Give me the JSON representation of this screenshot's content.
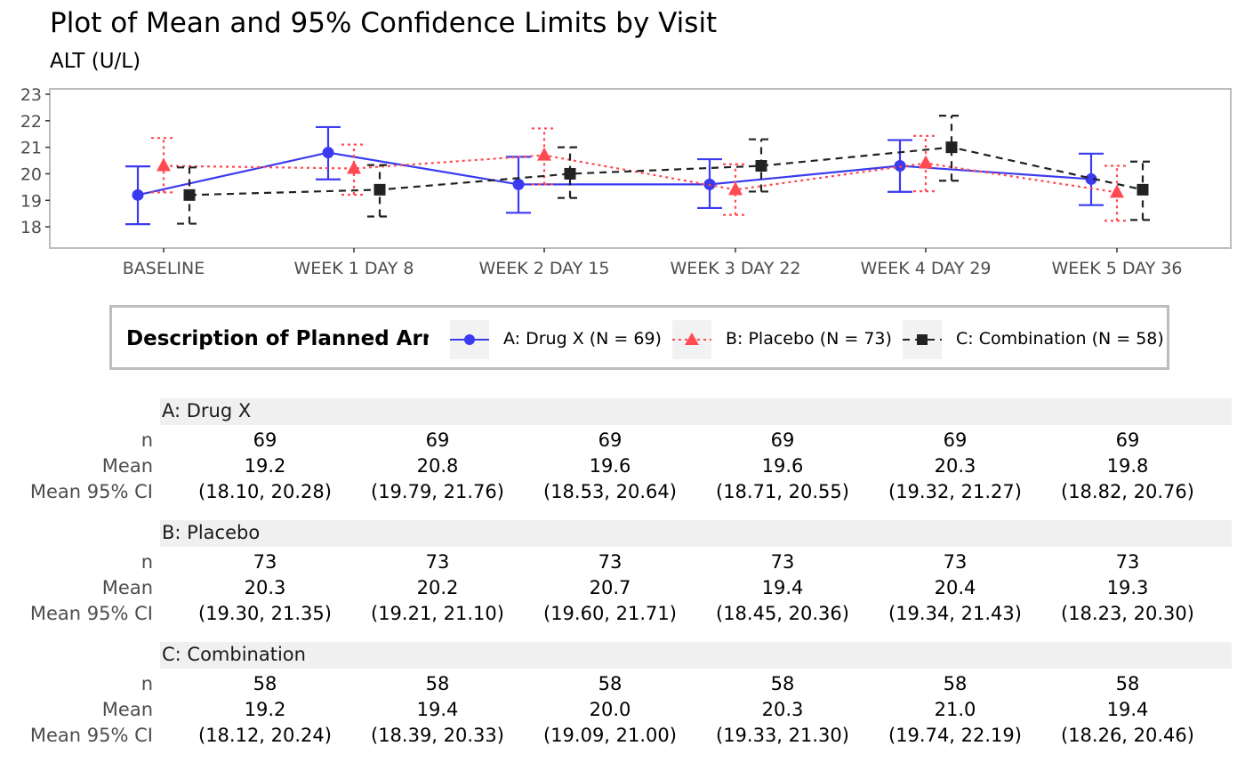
{
  "title": "Plot of Mean and 95% Confidence Limits by Visit",
  "subtitle": "ALT (U/L)",
  "legend": {
    "title": "Description of Planned Arm",
    "items": [
      {
        "label": "A: Drug X (N = 69)",
        "color": "#3a3af0",
        "shape": "circle",
        "linetype": "solid"
      },
      {
        "label": "B: Placebo (N = 73)",
        "color": "#ff4a52",
        "shape": "triangle",
        "linetype": "dotted"
      },
      {
        "label": "C: Combination (N = 58)",
        "color": "#222222",
        "shape": "square",
        "linetype": "dashed"
      }
    ]
  },
  "chart_data": {
    "type": "line",
    "categories": [
      "BASELINE",
      "WEEK 1 DAY 8",
      "WEEK 2 DAY 15",
      "WEEK 3 DAY 22",
      "WEEK 4 DAY 29",
      "WEEK 5 DAY 36"
    ],
    "ylim": [
      17.2,
      23.2
    ],
    "yticks": [
      18,
      19,
      20,
      21,
      22,
      23
    ],
    "grid": false,
    "legend_position": "bottom",
    "series": [
      {
        "name": "A: Drug X (N = 69)",
        "mean": [
          19.2,
          20.8,
          19.6,
          19.6,
          20.3,
          19.8
        ],
        "lower": [
          18.1,
          19.79,
          18.53,
          18.71,
          19.32,
          18.82
        ],
        "upper": [
          20.28,
          21.76,
          20.64,
          20.55,
          21.27,
          20.76
        ]
      },
      {
        "name": "B: Placebo (N = 73)",
        "mean": [
          20.3,
          20.2,
          20.7,
          19.4,
          20.4,
          19.3
        ],
        "lower": [
          19.3,
          19.21,
          19.6,
          18.45,
          19.34,
          18.23
        ],
        "upper": [
          21.35,
          21.1,
          21.71,
          20.36,
          21.43,
          20.3
        ]
      },
      {
        "name": "C: Combination (N = 58)",
        "mean": [
          19.2,
          19.4,
          20.0,
          20.3,
          21.0,
          19.4
        ],
        "lower": [
          18.12,
          18.39,
          19.09,
          19.33,
          19.74,
          18.26
        ],
        "upper": [
          20.24,
          20.33,
          21.0,
          21.3,
          22.19,
          20.46
        ]
      }
    ]
  },
  "table": {
    "row_labels": [
      "n",
      "Mean",
      "Mean 95% CI"
    ],
    "groups": [
      {
        "name": "A: Drug X",
        "n": [
          "69",
          "69",
          "69",
          "69",
          "69",
          "69"
        ],
        "mean": [
          "19.2",
          "20.8",
          "19.6",
          "19.6",
          "20.3",
          "19.8"
        ],
        "ci": [
          "(18.10, 20.28)",
          "(19.79, 21.76)",
          "(18.53, 20.64)",
          "(18.71, 20.55)",
          "(19.32, 21.27)",
          "(18.82, 20.76)"
        ]
      },
      {
        "name": "B: Placebo",
        "n": [
          "73",
          "73",
          "73",
          "73",
          "73",
          "73"
        ],
        "mean": [
          "20.3",
          "20.2",
          "20.7",
          "19.4",
          "20.4",
          "19.3"
        ],
        "ci": [
          "(19.30, 21.35)",
          "(19.21, 21.10)",
          "(19.60, 21.71)",
          "(18.45, 20.36)",
          "(19.34, 21.43)",
          "(18.23, 20.30)"
        ]
      },
      {
        "name": "C: Combination",
        "n": [
          "58",
          "58",
          "58",
          "58",
          "58",
          "58"
        ],
        "mean": [
          "19.2",
          "19.4",
          "20.0",
          "20.3",
          "21.0",
          "19.4"
        ],
        "ci": [
          "(18.12, 20.24)",
          "(18.39, 20.33)",
          "(19.09, 21.00)",
          "(19.33, 21.30)",
          "(19.74, 22.19)",
          "(18.26, 20.46)"
        ]
      }
    ]
  }
}
